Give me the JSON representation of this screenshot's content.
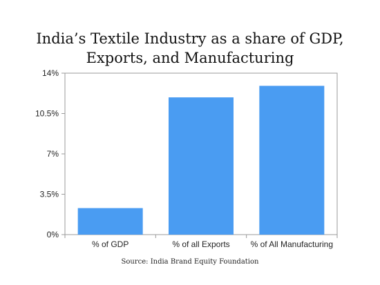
{
  "chart_data": {
    "type": "bar",
    "title_lines": [
      "India’s Textile Industry as a share of GDP,",
      "Exports, and Manufacturing"
    ],
    "categories": [
      "% of GDP",
      "% of all Exports",
      "% of All Manufacturing"
    ],
    "values": [
      2.3,
      11.9,
      12.9
    ],
    "ylim": [
      0,
      14
    ],
    "yticks": [
      0,
      3.5,
      7,
      10.5,
      14
    ],
    "ytick_labels": [
      "0%",
      "3.5%",
      "7%",
      "10.5%",
      "14%"
    ],
    "grid": false,
    "bar_color": "#4a9cf2",
    "source": "Source: India Brand Equity Foundation"
  }
}
